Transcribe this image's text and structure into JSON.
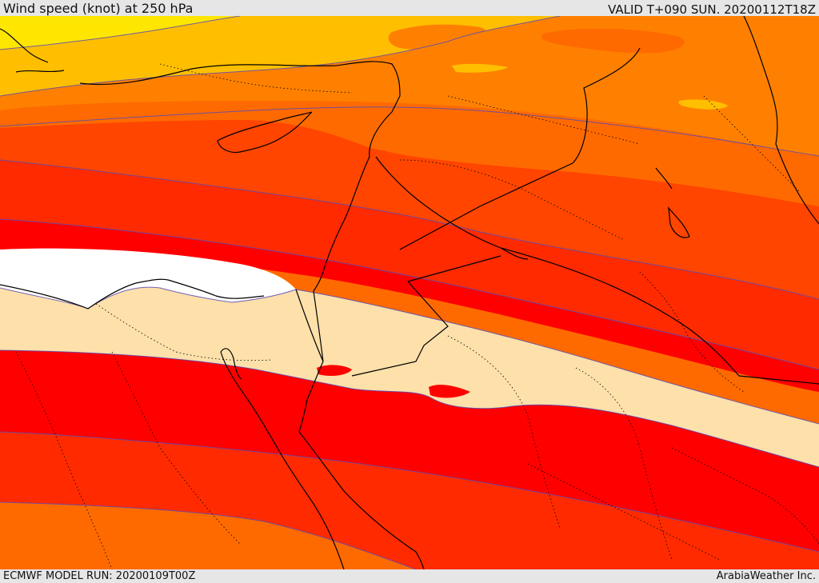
{
  "header": {
    "title": "Wind speed (knot) at 250 hPa",
    "valid_time": "VALID T+090 SUN. 20200112T18Z"
  },
  "footer": {
    "model_run": "ECMWF MODEL RUN: 20200109T00Z",
    "credit": "ArabiaWeather Inc."
  },
  "map": {
    "variable": "Wind speed",
    "unit": "knot",
    "level": "250 hPa",
    "band_colors": {
      "yellow": "#ffe600",
      "light_orange": "#ffbf00",
      "orange": "#ff8000",
      "dark_orange": "#ff6a00",
      "orange_red": "#ff4500",
      "red_orange": "#ff2a00",
      "red": "#ff0000",
      "white": "#ffffff",
      "light_tan": "#fde0aa"
    },
    "contour_color": "#5a4ab5",
    "coastline_color": "#000000"
  }
}
